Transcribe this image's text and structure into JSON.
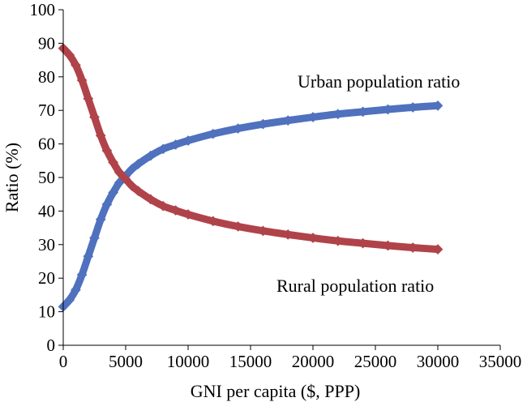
{
  "chart_data": {
    "type": "line",
    "title": "",
    "xlabel": "GNI per capita ($, PPP)",
    "ylabel": "Ratio (%)",
    "xlim": [
      0,
      35000
    ],
    "ylim": [
      0,
      100
    ],
    "x_ticks": [
      0,
      5000,
      10000,
      15000,
      20000,
      25000,
      30000,
      35000
    ],
    "y_ticks": [
      0,
      10,
      20,
      30,
      40,
      50,
      60,
      70,
      80,
      90,
      100
    ],
    "grid": false,
    "legend": "none",
    "x": [
      0,
      500,
      1000,
      1500,
      2000,
      2500,
      3000,
      3500,
      4000,
      4500,
      5000,
      5500,
      6000,
      7000,
      8000,
      9000,
      10000,
      12000,
      14000,
      16000,
      18000,
      20000,
      22000,
      24000,
      26000,
      28000,
      30000
    ],
    "series": [
      {
        "name": "Urban population ratio",
        "color": "#4F71BE",
        "values": [
          11.5,
          13.5,
          16.5,
          21,
          26.5,
          32,
          37.5,
          42,
          45.5,
          48.5,
          50.5,
          52.5,
          54,
          56.5,
          58.5,
          59.8,
          61,
          63,
          64.6,
          65.9,
          67,
          68,
          68.9,
          69.6,
          70.3,
          70.9,
          71.4
        ]
      },
      {
        "name": "Rural population ratio",
        "color": "#B0434A",
        "values": [
          88.5,
          86.5,
          83.5,
          79,
          73.5,
          68,
          62.5,
          58,
          54.5,
          51.5,
          49.5,
          47.5,
          46,
          43.5,
          41.5,
          40.2,
          39,
          37,
          35.4,
          34.1,
          33,
          32,
          31.1,
          30.4,
          29.7,
          29.1,
          28.6
        ]
      }
    ]
  }
}
